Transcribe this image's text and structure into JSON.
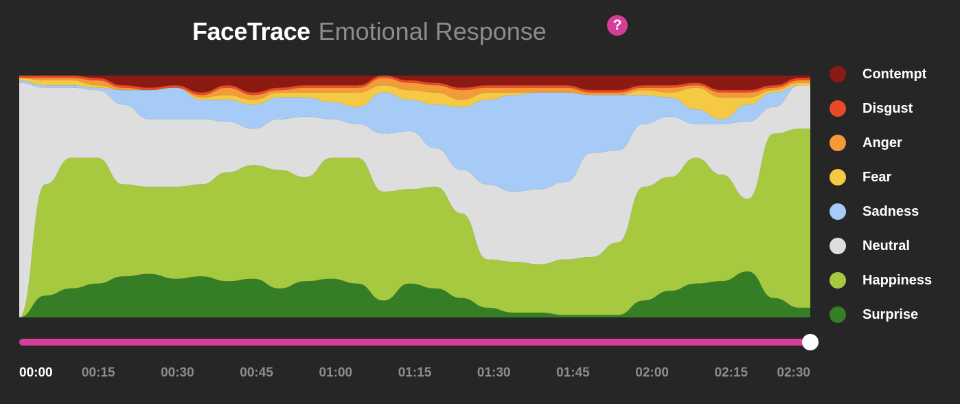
{
  "header": {
    "brand": "FaceTrace",
    "subtitle": "Emotional Response",
    "help_label": "?"
  },
  "colors": {
    "background": "#262626",
    "accent": "#d63f97",
    "contempt": "#8b1a12",
    "disgust": "#e84a27",
    "anger": "#f29b38",
    "fear": "#f6c944",
    "sadness": "#a6cbf7",
    "neutral": "#dedede",
    "happiness": "#a6c93f",
    "surprise": "#357e26"
  },
  "legend": [
    {
      "key": "contempt",
      "label": "Contempt"
    },
    {
      "key": "disgust",
      "label": "Disgust"
    },
    {
      "key": "anger",
      "label": "Anger"
    },
    {
      "key": "fear",
      "label": "Fear"
    },
    {
      "key": "sadness",
      "label": "Sadness"
    },
    {
      "key": "neutral",
      "label": "Neutral"
    },
    {
      "key": "happiness",
      "label": "Happiness"
    },
    {
      "key": "surprise",
      "label": "Surprise"
    }
  ],
  "timeline": {
    "ticks": [
      "00:00",
      "00:15",
      "00:30",
      "00:45",
      "01:00",
      "01:15",
      "01:30",
      "01:45",
      "02:00",
      "02:15",
      "02:30"
    ],
    "progress": 1.0
  },
  "chart_data": {
    "type": "area",
    "stacked": true,
    "normalized": true,
    "x": [
      0,
      5,
      10,
      15,
      20,
      25,
      30,
      35,
      40,
      45,
      50,
      55,
      60,
      65,
      70,
      75,
      80,
      85,
      90,
      95,
      100,
      105,
      110,
      115,
      120,
      125,
      130,
      135,
      140,
      145,
      150,
      152
    ],
    "ylim": [
      0,
      1
    ],
    "series": [
      {
        "name": "Surprise",
        "key": "surprise",
        "values": [
          0.0,
          0.09,
          0.12,
          0.14,
          0.17,
          0.18,
          0.16,
          0.17,
          0.15,
          0.16,
          0.12,
          0.15,
          0.16,
          0.14,
          0.07,
          0.14,
          0.12,
          0.08,
          0.04,
          0.02,
          0.02,
          0.01,
          0.01,
          0.01,
          0.07,
          0.11,
          0.14,
          0.15,
          0.19,
          0.08,
          0.04,
          0.04
        ]
      },
      {
        "name": "Happiness",
        "key": "happiness",
        "values": [
          0.0,
          0.46,
          0.54,
          0.52,
          0.38,
          0.36,
          0.38,
          0.38,
          0.45,
          0.47,
          0.49,
          0.43,
          0.5,
          0.52,
          0.45,
          0.39,
          0.42,
          0.35,
          0.2,
          0.21,
          0.2,
          0.23,
          0.24,
          0.3,
          0.47,
          0.47,
          0.52,
          0.44,
          0.3,
          0.68,
          0.74,
          0.74
        ]
      },
      {
        "name": "Neutral",
        "key": "neutral",
        "values": [
          0.97,
          0.4,
          0.29,
          0.28,
          0.33,
          0.28,
          0.28,
          0.27,
          0.21,
          0.15,
          0.21,
          0.25,
          0.16,
          0.14,
          0.24,
          0.24,
          0.16,
          0.18,
          0.31,
          0.29,
          0.31,
          0.32,
          0.43,
          0.38,
          0.26,
          0.25,
          0.14,
          0.21,
          0.32,
          0.11,
          0.18,
          0.18
        ]
      },
      {
        "name": "Sadness",
        "key": "sadness",
        "values": [
          0.01,
          0.01,
          0.01,
          0.01,
          0.06,
          0.12,
          0.13,
          0.08,
          0.09,
          0.1,
          0.09,
          0.08,
          0.07,
          0.07,
          0.17,
          0.13,
          0.18,
          0.26,
          0.35,
          0.4,
          0.4,
          0.37,
          0.24,
          0.23,
          0.12,
          0.08,
          0.06,
          0.02,
          0.07,
          0.06,
          0.0,
          0.0
        ]
      },
      {
        "name": "Fear",
        "key": "fear",
        "values": [
          0.01,
          0.02,
          0.02,
          0.01,
          0.0,
          0.0,
          0.0,
          0.01,
          0.02,
          0.02,
          0.02,
          0.02,
          0.04,
          0.06,
          0.03,
          0.04,
          0.05,
          0.03,
          0.03,
          0.01,
          0.0,
          0.0,
          0.0,
          0.0,
          0.02,
          0.02,
          0.09,
          0.09,
          0.03,
          0.01,
          0.01,
          0.01
        ]
      },
      {
        "name": "Anger",
        "key": "anger",
        "values": [
          0.0,
          0.01,
          0.01,
          0.02,
          0.01,
          0.0,
          0.0,
          0.01,
          0.03,
          0.02,
          0.01,
          0.02,
          0.02,
          0.02,
          0.03,
          0.03,
          0.03,
          0.04,
          0.02,
          0.02,
          0.02,
          0.02,
          0.01,
          0.01,
          0.01,
          0.02,
          0.01,
          0.02,
          0.02,
          0.01,
          0.01,
          0.01
        ]
      },
      {
        "name": "Disgust",
        "key": "disgust",
        "values": [
          0.01,
          0.01,
          0.01,
          0.01,
          0.01,
          0.01,
          0.01,
          0.01,
          0.01,
          0.01,
          0.01,
          0.01,
          0.01,
          0.01,
          0.01,
          0.01,
          0.01,
          0.01,
          0.01,
          0.01,
          0.01,
          0.01,
          0.01,
          0.01,
          0.01,
          0.01,
          0.01,
          0.01,
          0.01,
          0.01,
          0.01,
          0.01
        ]
      },
      {
        "name": "Contempt",
        "key": "contempt",
        "values": [
          0.0,
          0.0,
          0.0,
          0.01,
          0.04,
          0.05,
          0.04,
          0.07,
          0.04,
          0.07,
          0.05,
          0.04,
          0.04,
          0.04,
          0.0,
          0.02,
          0.03,
          0.05,
          0.04,
          0.04,
          0.04,
          0.04,
          0.06,
          0.06,
          0.04,
          0.04,
          0.03,
          0.06,
          0.06,
          0.04,
          0.01,
          0.01
        ]
      }
    ]
  }
}
